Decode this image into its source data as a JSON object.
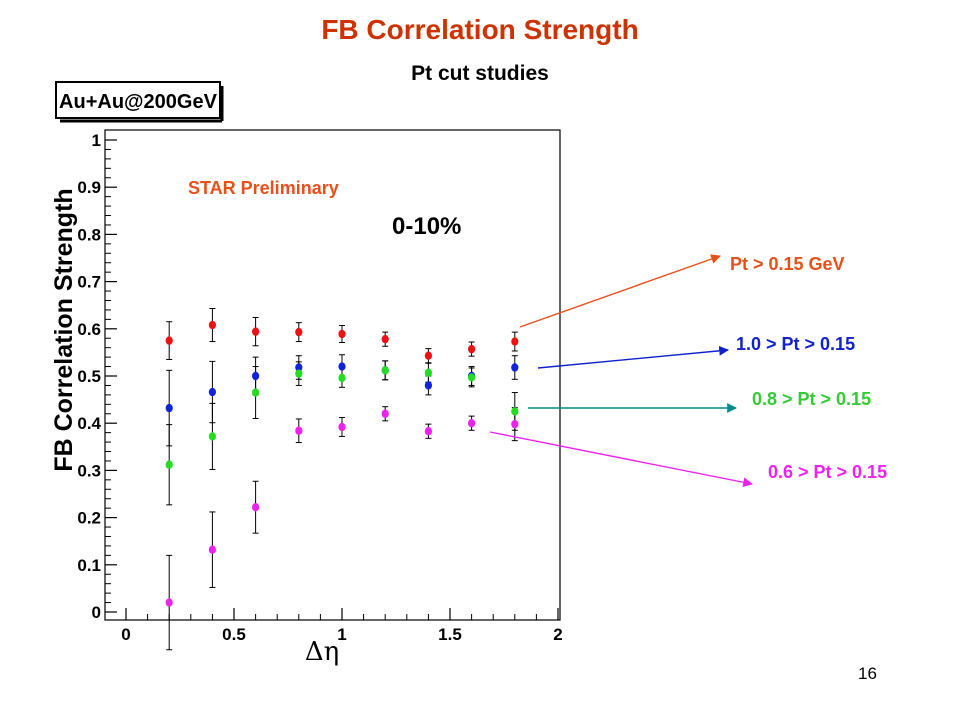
{
  "slide": {
    "title": "FB Correlation Strength",
    "subtitle": "Pt cut studies",
    "page_number": "16"
  },
  "chart_data": {
    "type": "scatter",
    "title": "0-10%",
    "system_label": "Au+Au@200GeV",
    "annotation": "STAR Preliminary",
    "xlabel": "Δη",
    "ylabel": "FB Correlation Strength",
    "xlim": [
      0,
      2
    ],
    "ylim": [
      0,
      1
    ],
    "x_ticks": [
      "0",
      "0.5",
      "1",
      "1.5",
      "2"
    ],
    "y_ticks": [
      "0",
      "0.1",
      "0.2",
      "0.3",
      "0.4",
      "0.5",
      "0.6",
      "0.7",
      "0.8",
      "0.9",
      "1"
    ],
    "grid": false,
    "legend": "callouts-right",
    "x": [
      0.2,
      0.4,
      0.6,
      0.8,
      1.0,
      1.2,
      1.4,
      1.6,
      1.8
    ],
    "series": [
      {
        "name": "Pt > 0.15 GeV",
        "color": "#ee1111",
        "values": [
          0.575,
          0.608,
          0.594,
          0.593,
          0.589,
          0.578,
          0.543,
          0.557,
          0.573
        ],
        "errors": [
          0.04,
          0.035,
          0.03,
          0.02,
          0.018,
          0.015,
          0.015,
          0.015,
          0.02
        ]
      },
      {
        "name": "1.0 > Pt > 0.15",
        "color": "#1122dd",
        "values": [
          0.432,
          0.466,
          0.5,
          0.518,
          0.52,
          0.512,
          0.48,
          0.5,
          0.518
        ],
        "errors": [
          0.08,
          0.065,
          0.04,
          0.025,
          0.025,
          0.02,
          0.02,
          0.02,
          0.025
        ]
      },
      {
        "name": "0.8 > Pt > 0.15",
        "color": "#22dd22",
        "values": [
          0.312,
          0.372,
          0.465,
          0.505,
          0.496,
          0.512,
          0.507,
          0.497,
          0.425
        ],
        "errors": [
          0.085,
          0.07,
          0.055,
          0.025,
          0.02,
          0.02,
          0.02,
          0.02,
          0.04
        ]
      },
      {
        "name": "0.6 > Pt > 0.15",
        "color": "#ee22ee",
        "values": [
          0.02,
          0.132,
          0.222,
          0.384,
          0.392,
          0.42,
          0.383,
          0.4,
          0.398
        ],
        "errors": [
          0.1,
          0.08,
          0.055,
          0.025,
          0.02,
          0.015,
          0.015,
          0.015,
          0.035
        ]
      }
    ],
    "callout_colors": [
      "#e8501a",
      "#1122cc",
      "#008b8b",
      "#ee22ee"
    ],
    "callout_label_colors": [
      "#e8501a",
      "#1122cc",
      "#33cc33",
      "#ee22ee"
    ]
  }
}
